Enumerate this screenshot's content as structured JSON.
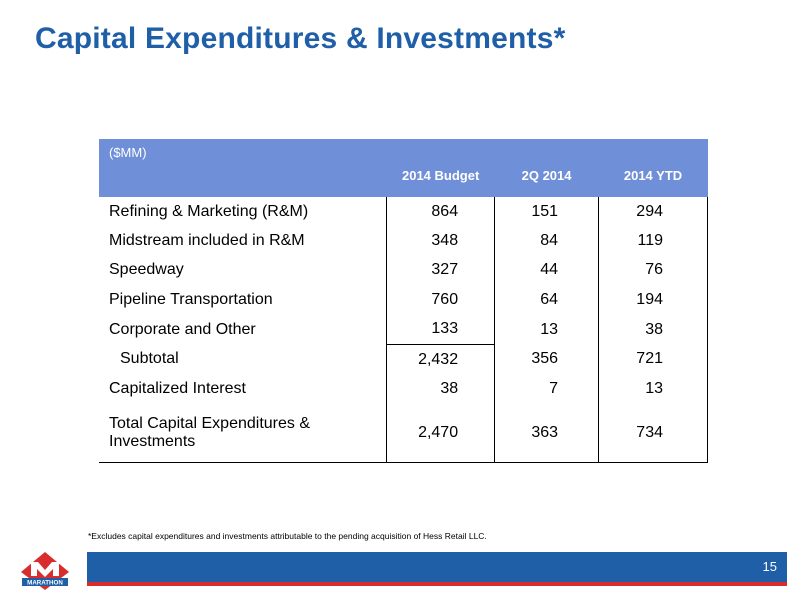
{
  "slide": {
    "title": "Capital Expenditures & Investments*",
    "footnote": "*Excludes capital expenditures and investments attributable to the pending acquisition of Hess Retail LLC.",
    "page_number": "15",
    "logo_text": "MARATHON",
    "colors": {
      "title": "#1e5fa8",
      "header_bg": "#6f8fd8",
      "footer_bar": "#1e5fa8",
      "footer_stripe": "#d92c2c",
      "logo_red": "#d92c2c"
    }
  },
  "table": {
    "unit_label": "($MM)",
    "columns": [
      "2014 Budget",
      "2Q 2014",
      "2014 YTD"
    ],
    "rows": [
      {
        "label": "Refining & Marketing (R&M)",
        "values": [
          "864",
          "151",
          "294"
        ]
      },
      {
        "label": "Midstream included in R&M",
        "values": [
          "348",
          "84",
          "119"
        ]
      },
      {
        "label": "Speedway",
        "values": [
          "327",
          "44",
          "76"
        ]
      },
      {
        "label": "Pipeline Transportation",
        "values": [
          "760",
          "64",
          "194"
        ]
      },
      {
        "label": "Corporate and Other",
        "values": [
          "133",
          "13",
          "38"
        ]
      },
      {
        "label": "Subtotal",
        "values": [
          "2,432",
          "356",
          "721"
        ]
      },
      {
        "label": "Capitalized Interest",
        "values": [
          "38",
          "7",
          "13"
        ]
      },
      {
        "label": "Total Capital Expenditures & Investments",
        "values": [
          "2,470",
          "363",
          "734"
        ]
      }
    ]
  }
}
